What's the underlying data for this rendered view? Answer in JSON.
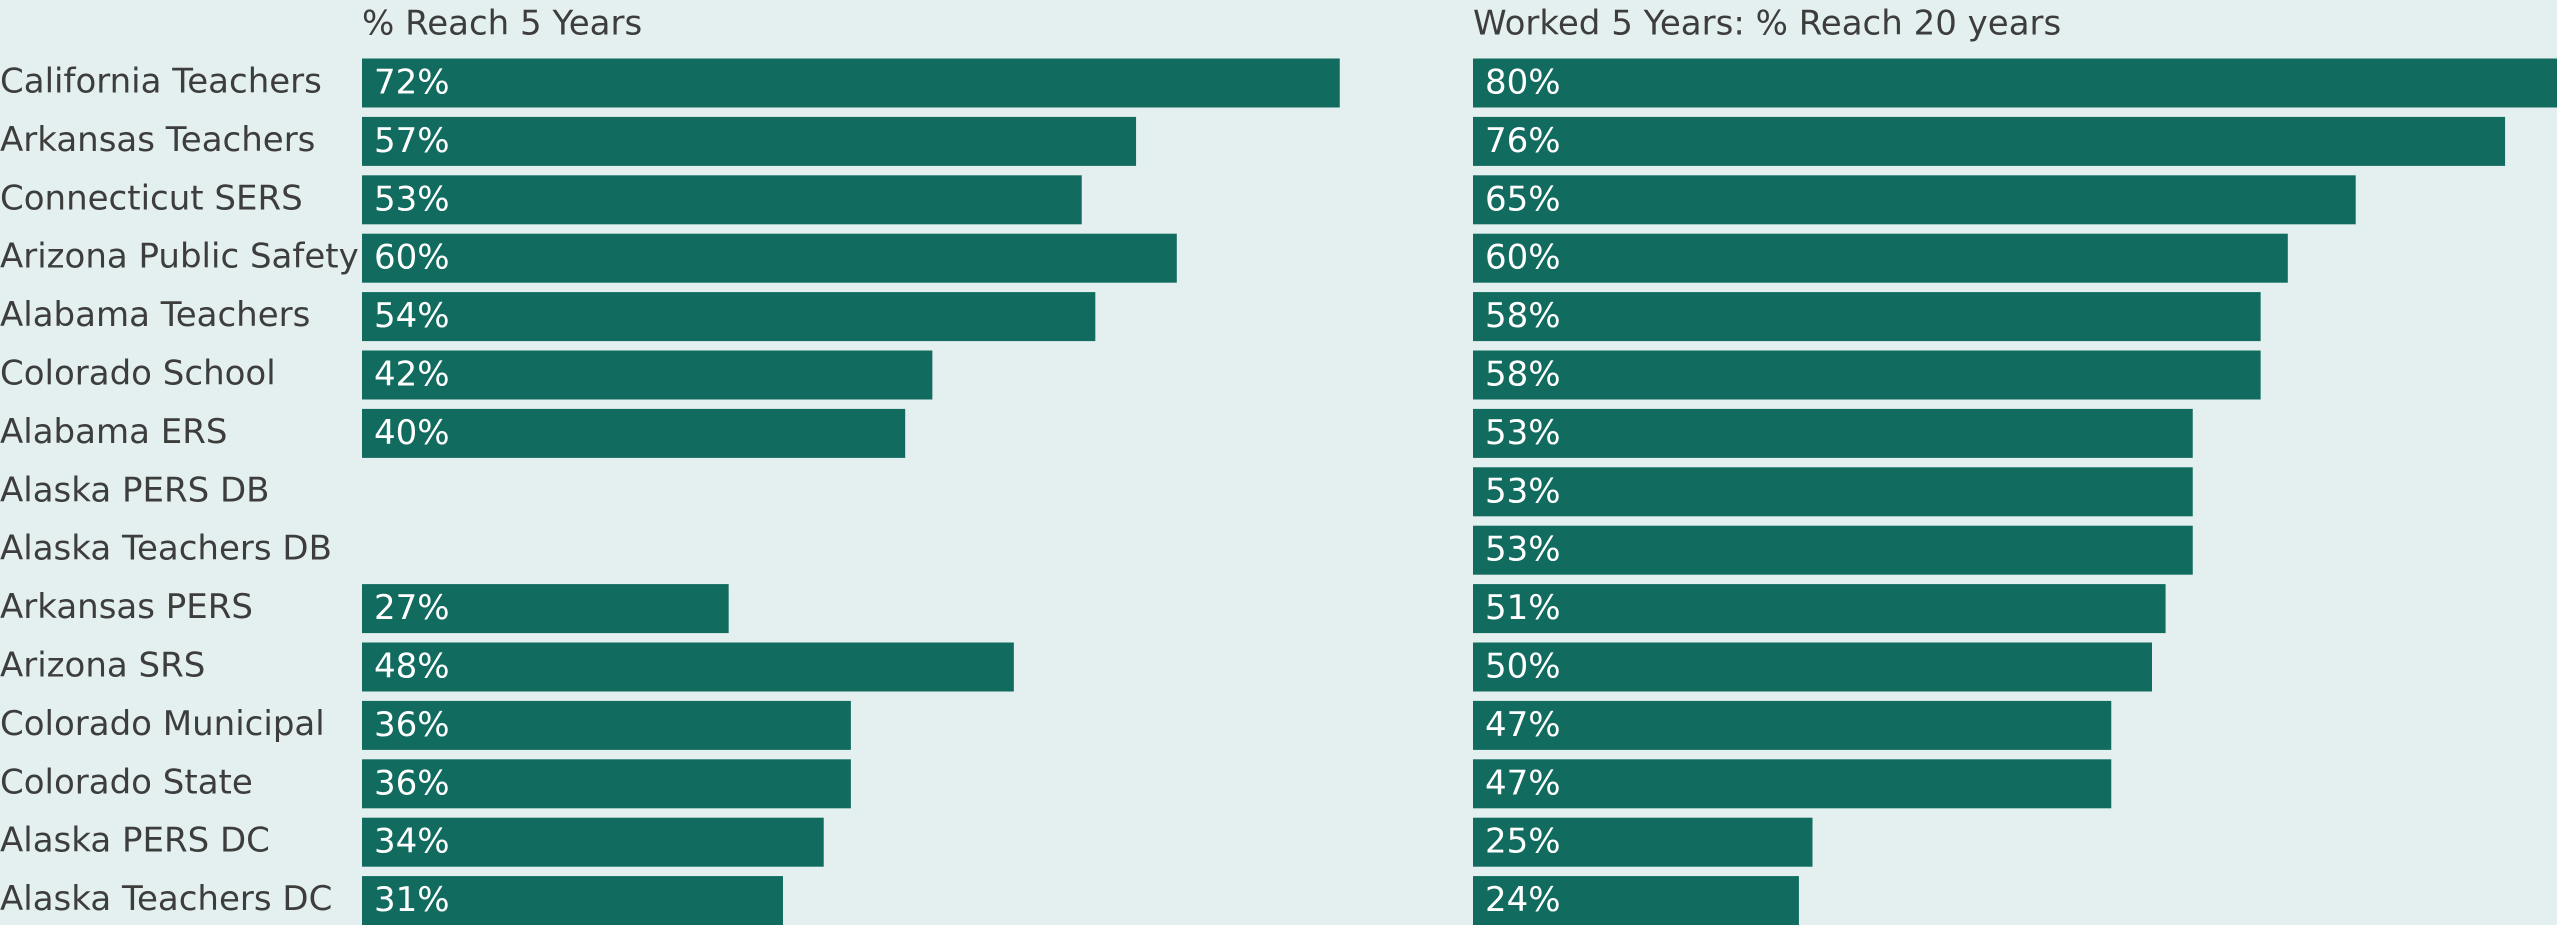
{
  "chart_data": {
    "type": "bar",
    "orientation": "horizontal",
    "color": "#116b5f",
    "categories": [
      "California Teachers",
      "Arkansas Teachers",
      "Connecticut SERS",
      "Arizona Public Safety",
      "Alabama Teachers",
      "Colorado School",
      "Alabama ERS",
      "Alaska PERS DB",
      "Alaska Teachers DB",
      "Arkansas PERS",
      "Arizona SRS",
      "Colorado Municipal",
      "Colorado State",
      "Alaska PERS DC",
      "Alaska Teachers DC"
    ],
    "series": [
      {
        "name": "% Reach 5 Years",
        "values": [
          72,
          57,
          53,
          60,
          54,
          42,
          40,
          null,
          null,
          27,
          48,
          36,
          36,
          34,
          31
        ],
        "value_labels": [
          "72%",
          "57%",
          "53%",
          "60%",
          "54%",
          "42%",
          "40%",
          null,
          null,
          "27%",
          "48%",
          "36%",
          "36%",
          "34%",
          "31%"
        ]
      },
      {
        "name": "Worked 5 Years: % Reach 20 years",
        "values": [
          80,
          76,
          65,
          60,
          58,
          58,
          53,
          53,
          53,
          51,
          50,
          47,
          47,
          25,
          24
        ],
        "value_labels": [
          "80%",
          "76%",
          "65%",
          "60%",
          "58%",
          "58%",
          "53%",
          "53%",
          "53%",
          "51%",
          "50%",
          "47%",
          "47%",
          "25%",
          "24%"
        ]
      }
    ]
  }
}
